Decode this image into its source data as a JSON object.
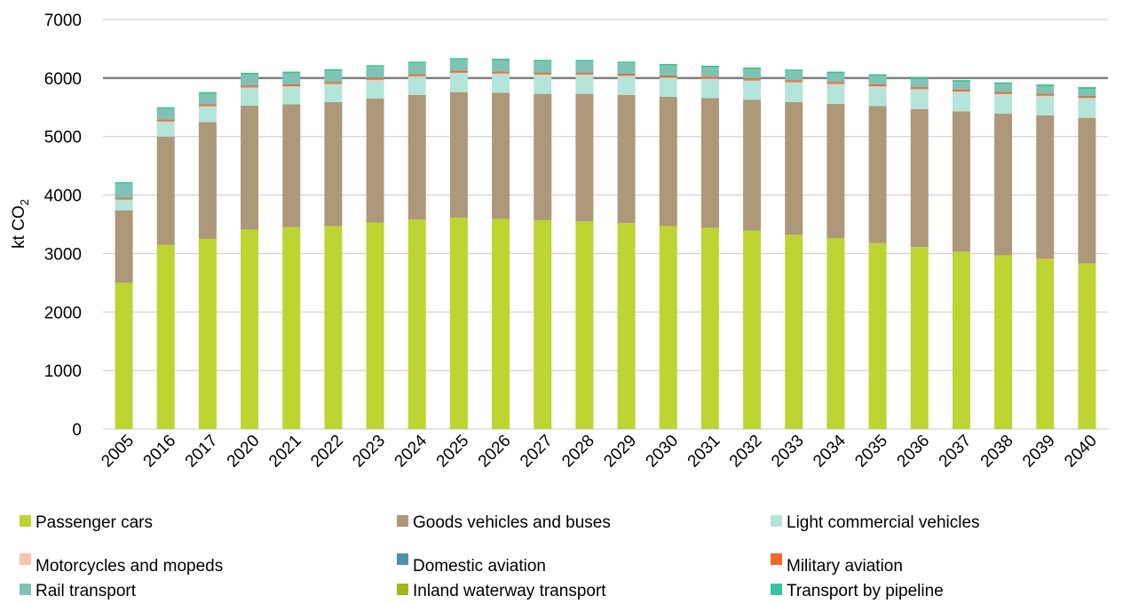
{
  "chart_data": {
    "type": "bar",
    "stacked": true,
    "title": "",
    "xlabel": "",
    "ylabel": "kt CO₂",
    "ylim": [
      0,
      7000
    ],
    "yticks": [
      0,
      1000,
      2000,
      3000,
      4000,
      5000,
      6000,
      7000
    ],
    "grid": true,
    "highlight_gridline": 6000,
    "legend_position": "bottom",
    "categories": [
      "2005",
      "2016",
      "2017",
      "2020",
      "2021",
      "2022",
      "2023",
      "2024",
      "2025",
      "2026",
      "2027",
      "2028",
      "2029",
      "2030",
      "2031",
      "2032",
      "2033",
      "2034",
      "2035",
      "2036",
      "2037",
      "2038",
      "2039",
      "2040"
    ],
    "series": [
      {
        "name": "Passenger cars",
        "color": "#bed431",
        "values": [
          2500,
          3150,
          3250,
          3410,
          3450,
          3470,
          3530,
          3580,
          3610,
          3590,
          3570,
          3550,
          3520,
          3470,
          3440,
          3390,
          3320,
          3260,
          3180,
          3110,
          3030,
          2970,
          2910,
          2830
        ]
      },
      {
        "name": "Goods vehicles and buses",
        "color": "#ae987a",
        "values": [
          1240,
          1850,
          2000,
          2120,
          2100,
          2120,
          2120,
          2130,
          2150,
          2160,
          2160,
          2180,
          2190,
          2210,
          2220,
          2240,
          2270,
          2300,
          2340,
          2360,
          2400,
          2420,
          2450,
          2490
        ]
      },
      {
        "name": "Light commercial vehicles",
        "color": "#b4e5da",
        "values": [
          170,
          240,
          250,
          290,
          290,
          290,
          300,
          300,
          310,
          310,
          310,
          310,
          310,
          310,
          310,
          310,
          320,
          320,
          320,
          320,
          320,
          320,
          320,
          320
        ]
      },
      {
        "name": "Motorcycles and mopeds",
        "color": "#f7c5ab",
        "values": [
          15,
          20,
          20,
          20,
          20,
          20,
          20,
          20,
          20,
          20,
          20,
          20,
          20,
          20,
          20,
          20,
          20,
          20,
          20,
          20,
          20,
          20,
          20,
          20
        ]
      },
      {
        "name": "Domestic aviation",
        "color": "#4b93a5",
        "values": [
          10,
          10,
          10,
          10,
          10,
          10,
          10,
          10,
          10,
          10,
          10,
          10,
          10,
          10,
          10,
          10,
          10,
          10,
          10,
          10,
          10,
          10,
          10,
          10
        ]
      },
      {
        "name": "Military aviation",
        "color": "#ef6b2c",
        "values": [
          20,
          25,
          25,
          25,
          25,
          25,
          25,
          25,
          25,
          25,
          25,
          25,
          25,
          25,
          25,
          25,
          25,
          25,
          25,
          25,
          25,
          25,
          25,
          25
        ]
      },
      {
        "name": "Rail transport",
        "color": "#7fc2b6",
        "values": [
          235,
          170,
          170,
          180,
          180,
          180,
          180,
          180,
          180,
          180,
          180,
          180,
          170,
          160,
          150,
          150,
          145,
          140,
          135,
          130,
          125,
          125,
          120,
          115
        ]
      },
      {
        "name": "Inland waterway transport",
        "color": "#a3b71d",
        "values": [
          5,
          5,
          5,
          5,
          5,
          5,
          5,
          5,
          5,
          5,
          5,
          5,
          5,
          5,
          5,
          5,
          5,
          5,
          5,
          5,
          5,
          5,
          5,
          5
        ]
      },
      {
        "name": "Transport by pipeline",
        "color": "#36c4a2",
        "values": [
          25,
          30,
          30,
          30,
          30,
          30,
          30,
          30,
          30,
          30,
          30,
          30,
          30,
          30,
          30,
          30,
          30,
          30,
          30,
          30,
          30,
          30,
          30,
          30
        ]
      }
    ]
  }
}
